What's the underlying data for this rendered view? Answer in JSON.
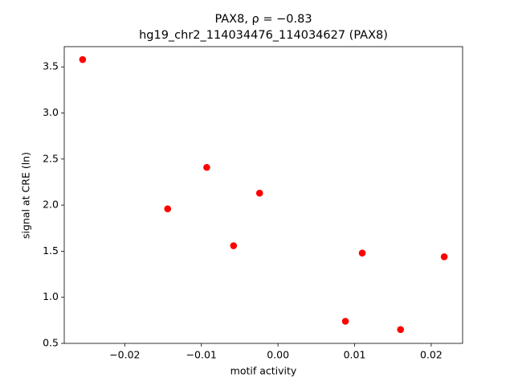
{
  "chart_data": {
    "type": "scatter",
    "title": "PAX8, ρ = −0.83",
    "subtitle": "hg19_chr2_114034476_114034627 (PAX8)",
    "x_label": "motif activity",
    "y_label": "signal at CRE (ln)",
    "color": "#ff0000",
    "x": [
      -0.0255,
      -0.0144,
      -0.0093,
      -0.0058,
      -0.0024,
      0.0088,
      0.011,
      0.016,
      0.0217
    ],
    "values": [
      3.58,
      1.96,
      2.41,
      1.56,
      2.13,
      0.74,
      1.48,
      0.65,
      1.44
    ],
    "xlim": [
      -0.0279,
      0.0241
    ],
    "ylim": [
      0.5,
      3.72
    ],
    "xticks": [
      {
        "value": -0.02,
        "label": "−0.02"
      },
      {
        "value": -0.01,
        "label": "−0.01"
      },
      {
        "value": 0,
        "label": "0.00"
      },
      0.01,
      0.02
    ],
    "yticks": [
      0.5,
      {
        "value": 1,
        "label": "1.0"
      },
      1.5,
      {
        "value": 2,
        "label": "2.0"
      },
      2.5,
      {
        "value": 3,
        "label": "3.0"
      },
      3.5
    ],
    "grid": false
  }
}
